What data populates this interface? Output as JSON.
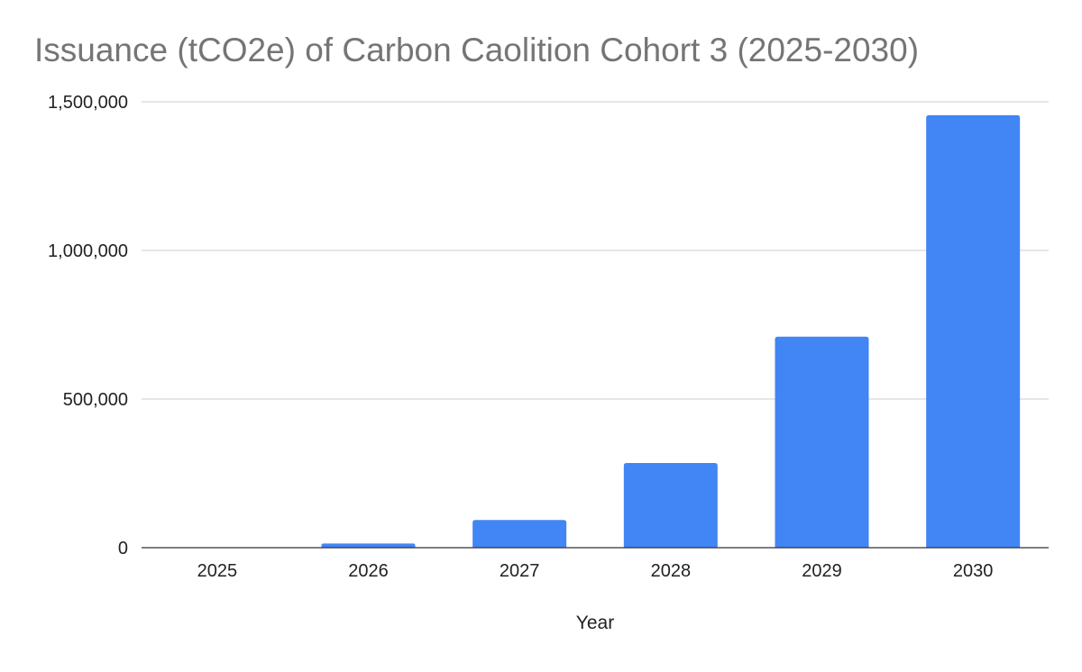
{
  "chart_data": {
    "type": "bar",
    "title": "Issuance (tCO2e) of Carbon Caolition Cohort 3 (2025-2030)",
    "xlabel": "Year",
    "ylabel": "",
    "categories": [
      "2025",
      "2026",
      "2027",
      "2028",
      "2029",
      "2030"
    ],
    "series": [
      {
        "values": [
          0,
          14000,
          93000,
          285000,
          710000,
          1455000
        ]
      }
    ],
    "ylim": [
      0,
      1500000
    ],
    "yticks": [
      0,
      500000,
      1000000,
      1500000
    ],
    "ytick_labels": [
      "0",
      "500,000",
      "1,000,000",
      "1,500,000"
    ],
    "grid": true,
    "legend": "none",
    "colors": {
      "bar": "#4285f4",
      "title": "#757575",
      "gridline": "#cccccc",
      "axis": "#333333",
      "text": "#222222"
    }
  }
}
